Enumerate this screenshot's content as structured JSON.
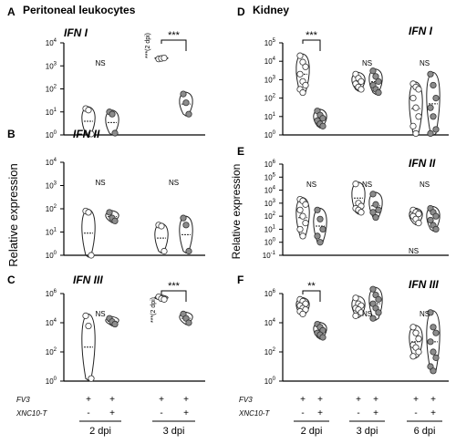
{
  "figure": {
    "ylabel_left": "Relative expression",
    "ylabel_right": "Relative expression",
    "panels_left_title": "Peritoneal leukocytes",
    "panels_right_title": "Kidney"
  },
  "treatment": {
    "rows": [
      {
        "label": "FV3",
        "left": [
          "+",
          "+",
          "+",
          "+"
        ],
        "right": [
          "+",
          "+",
          "+",
          "+",
          "+",
          "+"
        ]
      },
      {
        "label": "XNC10-T",
        "left": [
          "-",
          "+",
          "-",
          "+"
        ],
        "right": [
          "-",
          "+",
          "-",
          "+",
          "-",
          "+"
        ]
      }
    ],
    "groups_left": [
      "2 dpi",
      "3 dpi"
    ],
    "groups_right": [
      "2 dpi",
      "3 dpi",
      "6 dpi"
    ]
  },
  "chart_data": [
    {
      "type": "violin",
      "panel_letter": "A",
      "title": "IFN I",
      "header": "Peritoneal leukocytes",
      "yscale": "log",
      "ylim": [
        1,
        10000
      ],
      "ticks": [
        {
          "e": "0",
          "base": "10"
        },
        {
          "e": "1",
          "base": "10"
        },
        {
          "e": "2",
          "base": "10"
        },
        {
          "e": "3",
          "base": "10"
        },
        {
          "e": "4",
          "base": "10"
        }
      ],
      "series": [
        {
          "group": "2 dpi",
          "fill": "white",
          "points": [
            14,
            12,
            1.1
          ]
        },
        {
          "group": "2 dpi",
          "fill": "gray",
          "points": [
            10,
            8,
            1.2
          ]
        },
        {
          "group": "3 dpi",
          "fill": "white",
          "points": [
            2000,
            2100,
            2200
          ]
        },
        {
          "group": "3 dpi",
          "fill": "gray",
          "points": [
            60,
            25,
            8
          ]
        }
      ],
      "annotations": [
        {
          "text": "NS",
          "group": "2 dpi"
        },
        {
          "text": "***",
          "group": "3 dpi",
          "bracket": true
        },
        {
          "text": "***(2 dpi)",
          "rotated": true
        }
      ]
    },
    {
      "type": "violin",
      "panel_letter": "B",
      "title": "IFN II",
      "yscale": "log",
      "ylim": [
        1,
        10000
      ],
      "ticks": [
        {
          "e": "0",
          "base": "10"
        },
        {
          "e": "1",
          "base": "10"
        },
        {
          "e": "2",
          "base": "10"
        },
        {
          "e": "3",
          "base": "10"
        },
        {
          "e": "4",
          "base": "10"
        }
      ],
      "series": [
        {
          "group": "2 dpi",
          "fill": "white",
          "points": [
            80,
            70,
            1.0
          ]
        },
        {
          "group": "2 dpi",
          "fill": "gray",
          "points": [
            70,
            40,
            30
          ]
        },
        {
          "group": "3 dpi",
          "fill": "white",
          "points": [
            20,
            18,
            1.5
          ]
        },
        {
          "group": "3 dpi",
          "fill": "gray",
          "points": [
            40,
            20,
            1.5
          ]
        }
      ],
      "annotations": [
        {
          "text": "NS",
          "group": "2 dpi"
        },
        {
          "text": "NS",
          "group": "3 dpi"
        }
      ]
    },
    {
      "type": "violin",
      "panel_letter": "C",
      "title": "IFN III",
      "yscale": "log",
      "ylim": [
        1,
        1000000
      ],
      "ticks": [
        {
          "e": "0",
          "base": "10"
        },
        {
          "e": "2",
          "base": "10"
        },
        {
          "e": "4",
          "base": "10"
        },
        {
          "e": "6",
          "base": "10"
        }
      ],
      "series": [
        {
          "group": "2 dpi",
          "fill": "white",
          "points": [
            30000,
            6000,
            1.5
          ]
        },
        {
          "group": "2 dpi",
          "fill": "gray",
          "points": [
            20000,
            12000,
            8000
          ]
        },
        {
          "group": "3 dpi",
          "fill": "white",
          "points": [
            600000,
            450000,
            400000
          ]
        },
        {
          "group": "3 dpi",
          "fill": "gray",
          "points": [
            40000,
            20000,
            10000
          ]
        }
      ],
      "annotations": [
        {
          "text": "NS",
          "group": "2 dpi"
        },
        {
          "text": "***",
          "group": "3 dpi",
          "bracket": true
        },
        {
          "text": "***(2 dpi)",
          "rotated": true
        }
      ]
    },
    {
      "type": "violin",
      "panel_letter": "D",
      "title": "IFN I",
      "header": "Kidney",
      "yscale": "log",
      "ylim": [
        1,
        100000
      ],
      "ticks": [
        {
          "e": "0",
          "base": "10"
        },
        {
          "e": "1",
          "base": "10"
        },
        {
          "e": "2",
          "base": "10"
        },
        {
          "e": "3",
          "base": "10"
        },
        {
          "e": "4",
          "base": "10"
        },
        {
          "e": "5",
          "base": "10"
        }
      ],
      "series": [
        {
          "group": "2 dpi",
          "fill": "white",
          "points": [
            20000,
            9000,
            5000,
            2000,
            800,
            500,
            300,
            200
          ]
        },
        {
          "group": "2 dpi",
          "fill": "gray",
          "points": [
            20,
            12,
            8,
            6,
            4,
            3
          ]
        },
        {
          "group": "3 dpi",
          "fill": "white",
          "points": [
            2000,
            1200,
            800,
            600,
            400,
            300
          ]
        },
        {
          "group": "3 dpi",
          "fill": "gray",
          "points": [
            3000,
            1500,
            800,
            500,
            300,
            200
          ]
        },
        {
          "group": "6 dpi",
          "fill": "white",
          "points": [
            600,
            400,
            300,
            100,
            30,
            10,
            3,
            1.2
          ]
        },
        {
          "group": "6 dpi",
          "fill": "gray",
          "points": [
            2000,
            500,
            100,
            30,
            10,
            2,
            1.2
          ]
        }
      ],
      "annotations": [
        {
          "text": "***",
          "group": "2 dpi",
          "bracket": true
        },
        {
          "text": "NS",
          "group": "3 dpi"
        },
        {
          "text": "NS",
          "group": "6 dpi"
        }
      ]
    },
    {
      "type": "violin",
      "panel_letter": "E",
      "title": "IFN II",
      "yscale": "log",
      "ylim": [
        0.1,
        1000000
      ],
      "ticks": [
        {
          "e": "-1",
          "base": "10"
        },
        {
          "e": "0",
          "base": "10"
        },
        {
          "e": "1",
          "base": "10"
        },
        {
          "e": "2",
          "base": "10"
        },
        {
          "e": "3",
          "base": "10"
        },
        {
          "e": "4",
          "base": "10"
        },
        {
          "e": "5",
          "base": "10"
        },
        {
          "e": "6",
          "base": "10"
        }
      ],
      "series": [
        {
          "group": "2 dpi",
          "fill": "white",
          "points": [
            2000,
            1500,
            800,
            300,
            100,
            30,
            10,
            3
          ]
        },
        {
          "group": "2 dpi",
          "fill": "gray",
          "points": [
            300,
            60,
            10,
            3,
            1
          ]
        },
        {
          "group": "3 dpi",
          "fill": "white",
          "points": [
            30000,
            1000,
            600,
            400,
            300,
            200
          ]
        },
        {
          "group": "3 dpi",
          "fill": "gray",
          "points": [
            5000,
            800,
            300,
            200,
            80
          ]
        },
        {
          "group": "6 dpi",
          "fill": "white",
          "points": [
            300,
            200,
            150,
            100,
            60,
            30
          ]
        },
        {
          "group": "6 dpi",
          "fill": "gray",
          "points": [
            400,
            200,
            100,
            50,
            20,
            10
          ]
        }
      ],
      "annotations": [
        {
          "text": "NS",
          "group": "2 dpi"
        },
        {
          "text": "NS",
          "group": "3 dpi"
        },
        {
          "text": "NS",
          "group": "6 dpi"
        },
        {
          "text": "NS",
          "group": "6 dpi",
          "position": "below"
        }
      ]
    },
    {
      "type": "violin",
      "panel_letter": "F",
      "title": "IFN III",
      "yscale": "log",
      "ylim": [
        1,
        1000000
      ],
      "ticks": [
        {
          "e": "0",
          "base": "10"
        },
        {
          "e": "2",
          "base": "10"
        },
        {
          "e": "4",
          "base": "10"
        },
        {
          "e": "6",
          "base": "10"
        }
      ],
      "series": [
        {
          "group": "2 dpi",
          "fill": "white",
          "points": [
            400000,
            300000,
            200000,
            150000,
            100000,
            80000,
            60000,
            40000
          ]
        },
        {
          "group": "2 dpi",
          "fill": "gray",
          "points": [
            8000,
            5000,
            3000,
            2000,
            1500,
            1000
          ]
        },
        {
          "group": "3 dpi",
          "fill": "white",
          "points": [
            500000,
            200000,
            150000,
            100000,
            80000,
            50000,
            30000
          ]
        },
        {
          "group": "3 dpi",
          "fill": "gray",
          "points": [
            2000000,
            800000,
            400000,
            200000,
            100000,
            50000,
            20000
          ]
        },
        {
          "group": "6 dpi",
          "fill": "white",
          "points": [
            5000,
            2000,
            800,
            300,
            200,
            100,
            50
          ]
        },
        {
          "group": "6 dpi",
          "fill": "gray",
          "points": [
            50000,
            5000,
            2000,
            500,
            100,
            40,
            10,
            5
          ]
        }
      ],
      "annotations": [
        {
          "text": "**",
          "group": "2 dpi",
          "bracket": true
        },
        {
          "text": "NS",
          "group": "3 dpi"
        },
        {
          "text": "NS",
          "group": "6 dpi"
        }
      ]
    }
  ]
}
